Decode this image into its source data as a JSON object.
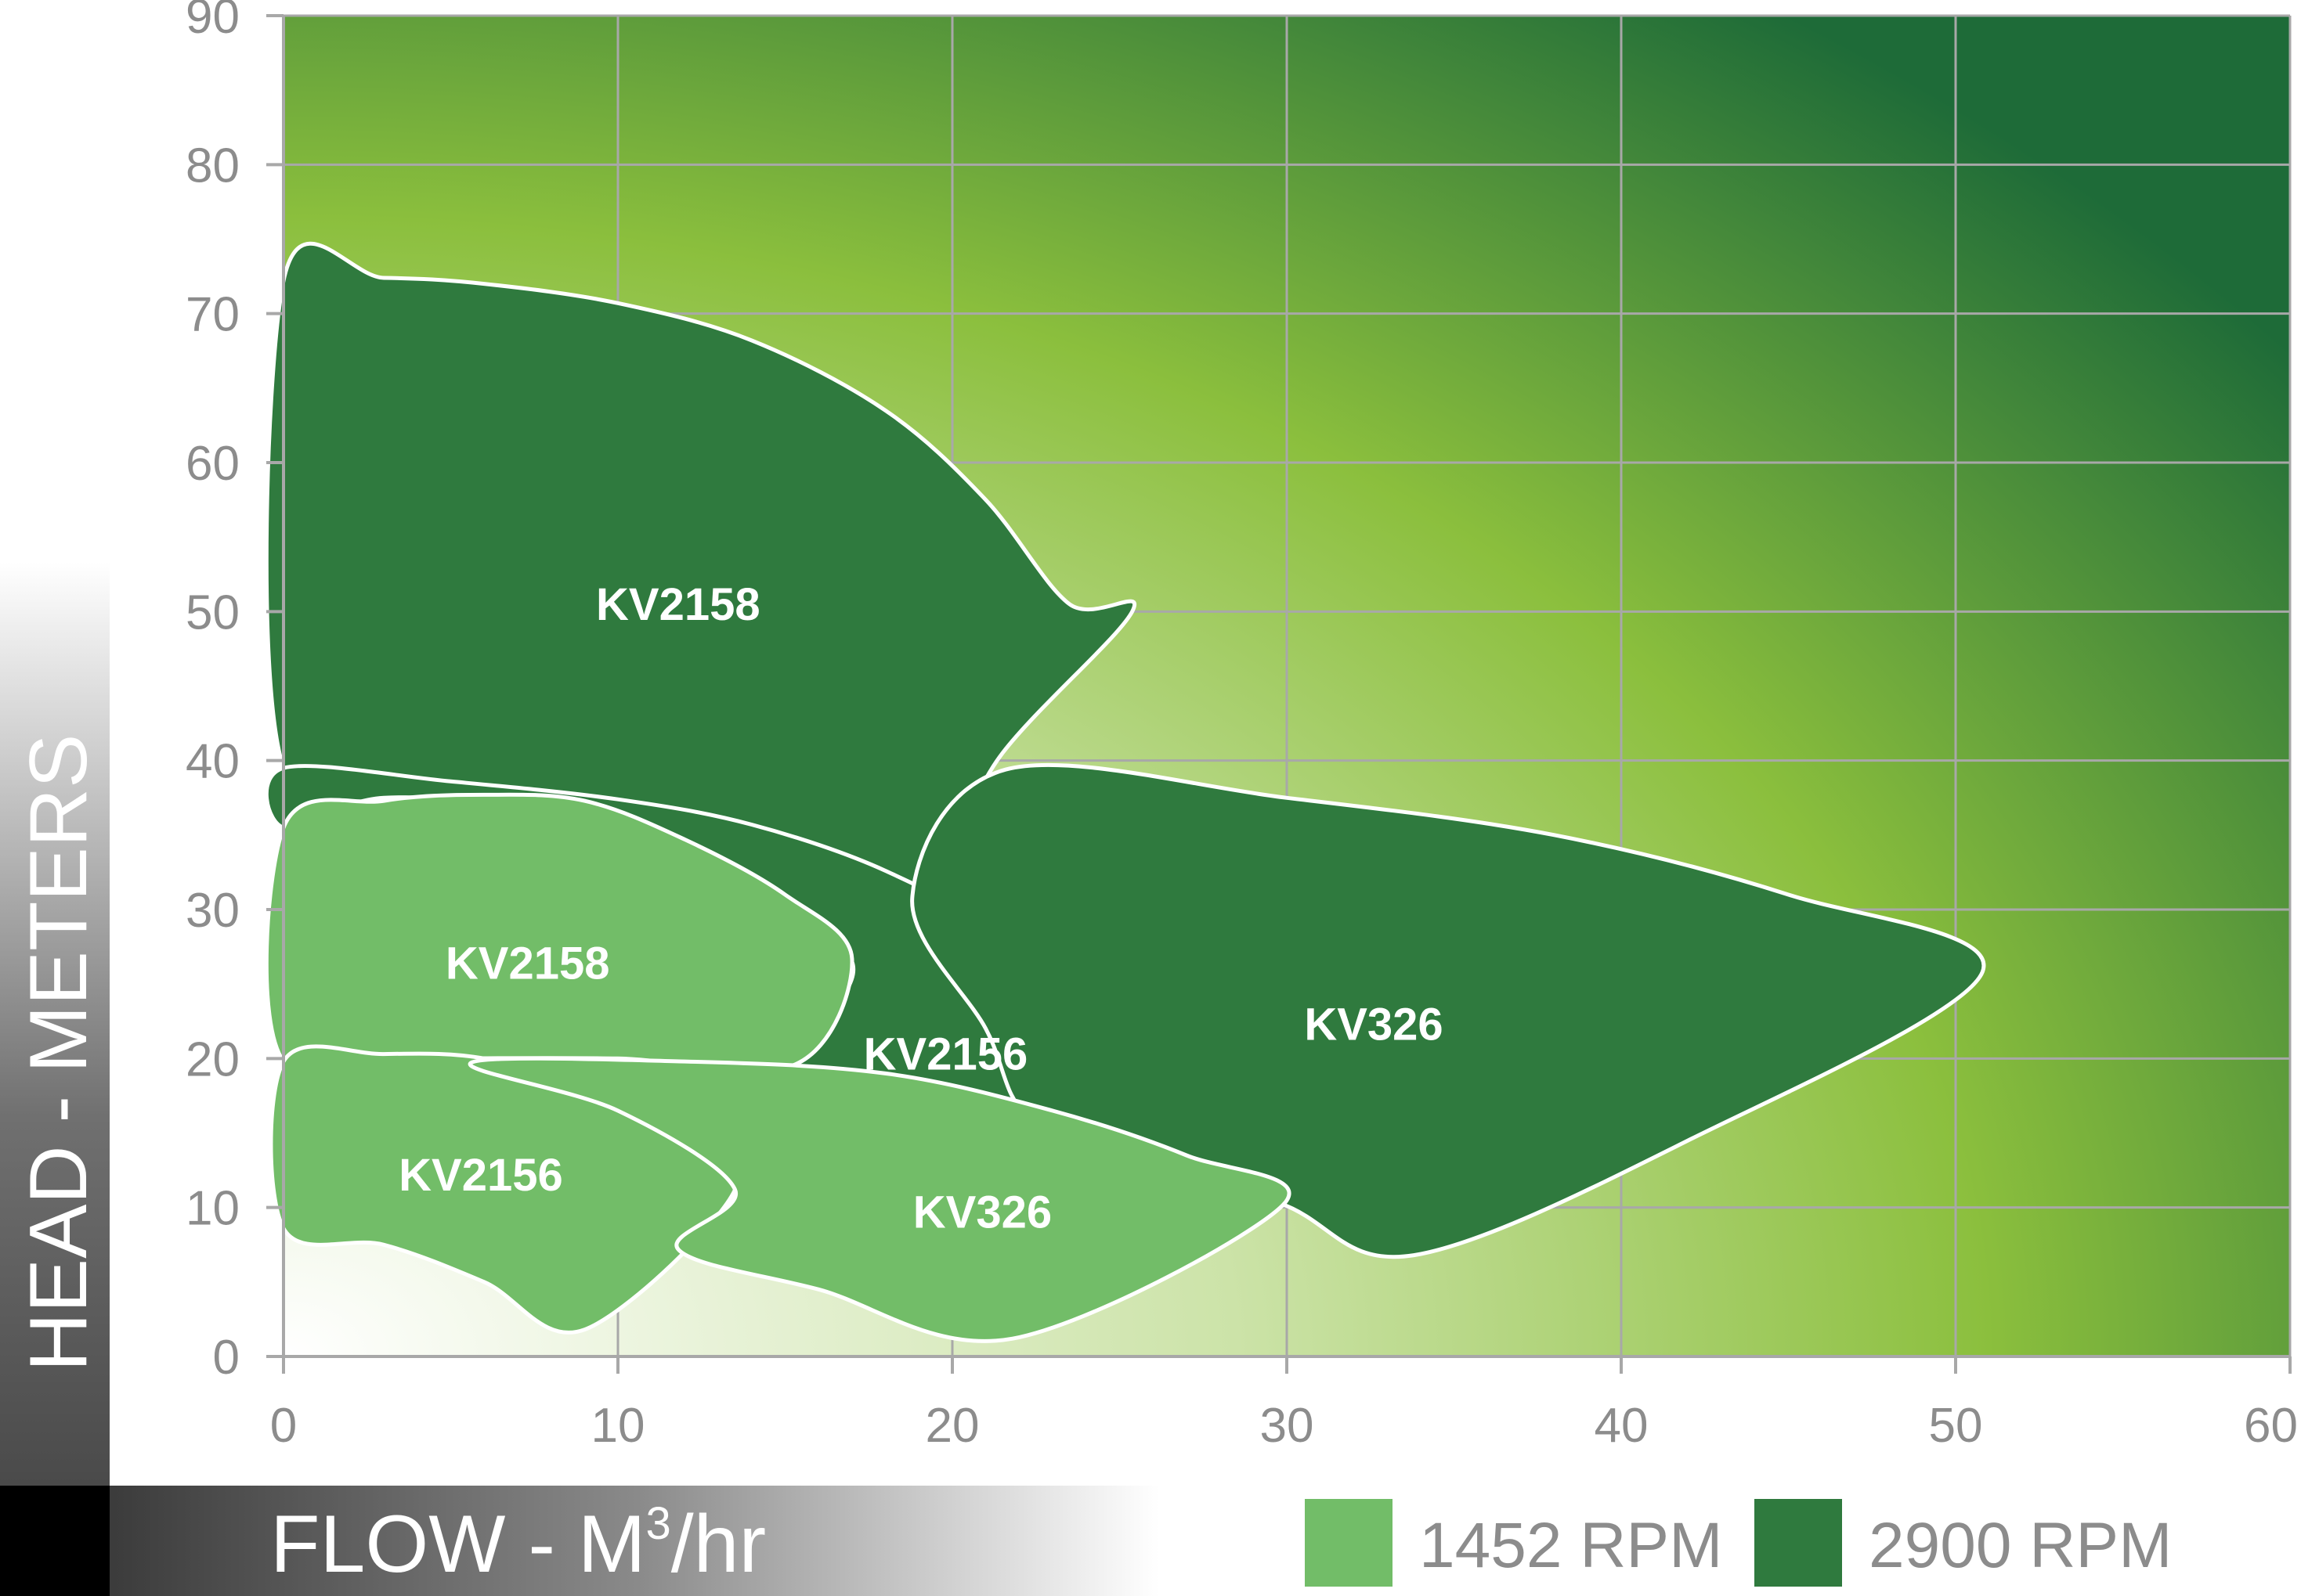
{
  "chart_data": {
    "type": "area",
    "title": "",
    "xlabel": "FLOW - M",
    "xlabel_sup": "3",
    "xlabel_suffix": "/hr",
    "ylabel": "HEAD - METERS",
    "xlim": [
      0,
      60
    ],
    "ylim": [
      0,
      90
    ],
    "x_ticks": [
      "0",
      "10",
      "20",
      "30",
      "40",
      "50",
      "60"
    ],
    "y_ticks": [
      "0",
      "10",
      "20",
      "30",
      "40",
      "50",
      "60",
      "70",
      "80",
      "90"
    ],
    "grid": true,
    "legend_position": "bottom-right",
    "legend": [
      {
        "label": "1452 RPM",
        "color": "#72bd68"
      },
      {
        "label": "2900 RPM",
        "color": "#2f7a3e"
      }
    ],
    "series": [
      {
        "name": "KV2158",
        "speed": "2900 RPM",
        "color": "#2f7a3e",
        "label_at": [
          11.8,
          50.5
        ],
        "outline": [
          [
            0,
            72.2
          ],
          [
            3,
            72.4
          ],
          [
            6,
            72
          ],
          [
            10,
            70.7
          ],
          [
            14,
            68.2
          ],
          [
            18,
            63.5
          ],
          [
            21,
            57.5
          ],
          [
            23.5,
            50.5
          ],
          [
            25.4,
            50.1
          ],
          [
            21.5,
            40.5
          ],
          [
            18.8,
            30.8
          ],
          [
            15,
            33.5
          ],
          [
            10,
            36.5
          ],
          [
            5,
            38.5
          ],
          [
            0,
            39.5
          ]
        ]
      },
      {
        "name": "KV2156",
        "speed": "2900 RPM",
        "color": "#2f7a3e",
        "label_at": [
          19.8,
          20.3
        ],
        "outline": [
          [
            0,
            39.5
          ],
          [
            5,
            38.6
          ],
          [
            10,
            37.4
          ],
          [
            14,
            35.7
          ],
          [
            18,
            32.6
          ],
          [
            21,
            28.5
          ],
          [
            23.9,
            20.4
          ],
          [
            22.2,
            16.3
          ],
          [
            18.5,
            17.8
          ],
          [
            15.3,
            19.6
          ],
          [
            17,
            26.5
          ],
          [
            13,
            33
          ],
          [
            8,
            36.5
          ],
          [
            3,
            37.5
          ],
          [
            0,
            35.5
          ]
        ]
      },
      {
        "name": "KV326",
        "speed": "2900 RPM",
        "color": "#2f7a3e",
        "label_at": [
          32.6,
          22.3
        ],
        "outline": [
          [
            21.6,
            39.4
          ],
          [
            30,
            37.5
          ],
          [
            38,
            35
          ],
          [
            45,
            31
          ],
          [
            50.8,
            25.8
          ],
          [
            42,
            14.5
          ],
          [
            33.8,
            6.8
          ],
          [
            29.9,
            10.2
          ],
          [
            25,
            14.5
          ],
          [
            22.2,
            16.3
          ],
          [
            21,
            22
          ],
          [
            18.8,
            30.8
          ]
        ]
      },
      {
        "name": "KV2158",
        "speed": "1452 RPM",
        "color": "#72bd68",
        "label_at": [
          7.3,
          26.4
        ],
        "outline": [
          [
            0,
            35.5
          ],
          [
            3,
            37.3
          ],
          [
            6,
            37.7
          ],
          [
            9,
            37.3
          ],
          [
            12,
            34.7
          ],
          [
            15,
            31
          ],
          [
            17,
            26.7
          ],
          [
            15.3,
            19.6
          ],
          [
            10,
            20
          ],
          [
            5,
            20
          ],
          [
            0,
            19.8
          ]
        ]
      },
      {
        "name": "KV2156",
        "speed": "1452 RPM",
        "color": "#72bd68",
        "label_at": [
          5.9,
          12.2
        ],
        "outline": [
          [
            0,
            19.8
          ],
          [
            3,
            20.3
          ],
          [
            6,
            20
          ],
          [
            9,
            17.8
          ],
          [
            11.5,
            14.8
          ],
          [
            13.5,
            11.2
          ],
          [
            9,
            1.8
          ],
          [
            6,
            5
          ],
          [
            3,
            7.5
          ],
          [
            0,
            8.6
          ]
        ]
      },
      {
        "name": "KV326",
        "speed": "1452 RPM",
        "color": "#72bd68",
        "label_at": [
          20.9,
          9.7
        ],
        "outline": [
          [
            5.6,
            19.7
          ],
          [
            12,
            19.8
          ],
          [
            18,
            19
          ],
          [
            23,
            16.5
          ],
          [
            27,
            13.5
          ],
          [
            29.9,
            10.2
          ],
          [
            21.8,
            1.2
          ],
          [
            16,
            4.5
          ],
          [
            11.8,
            7.2
          ],
          [
            13.5,
            11.2
          ],
          [
            10,
            16.5
          ]
        ]
      }
    ]
  }
}
